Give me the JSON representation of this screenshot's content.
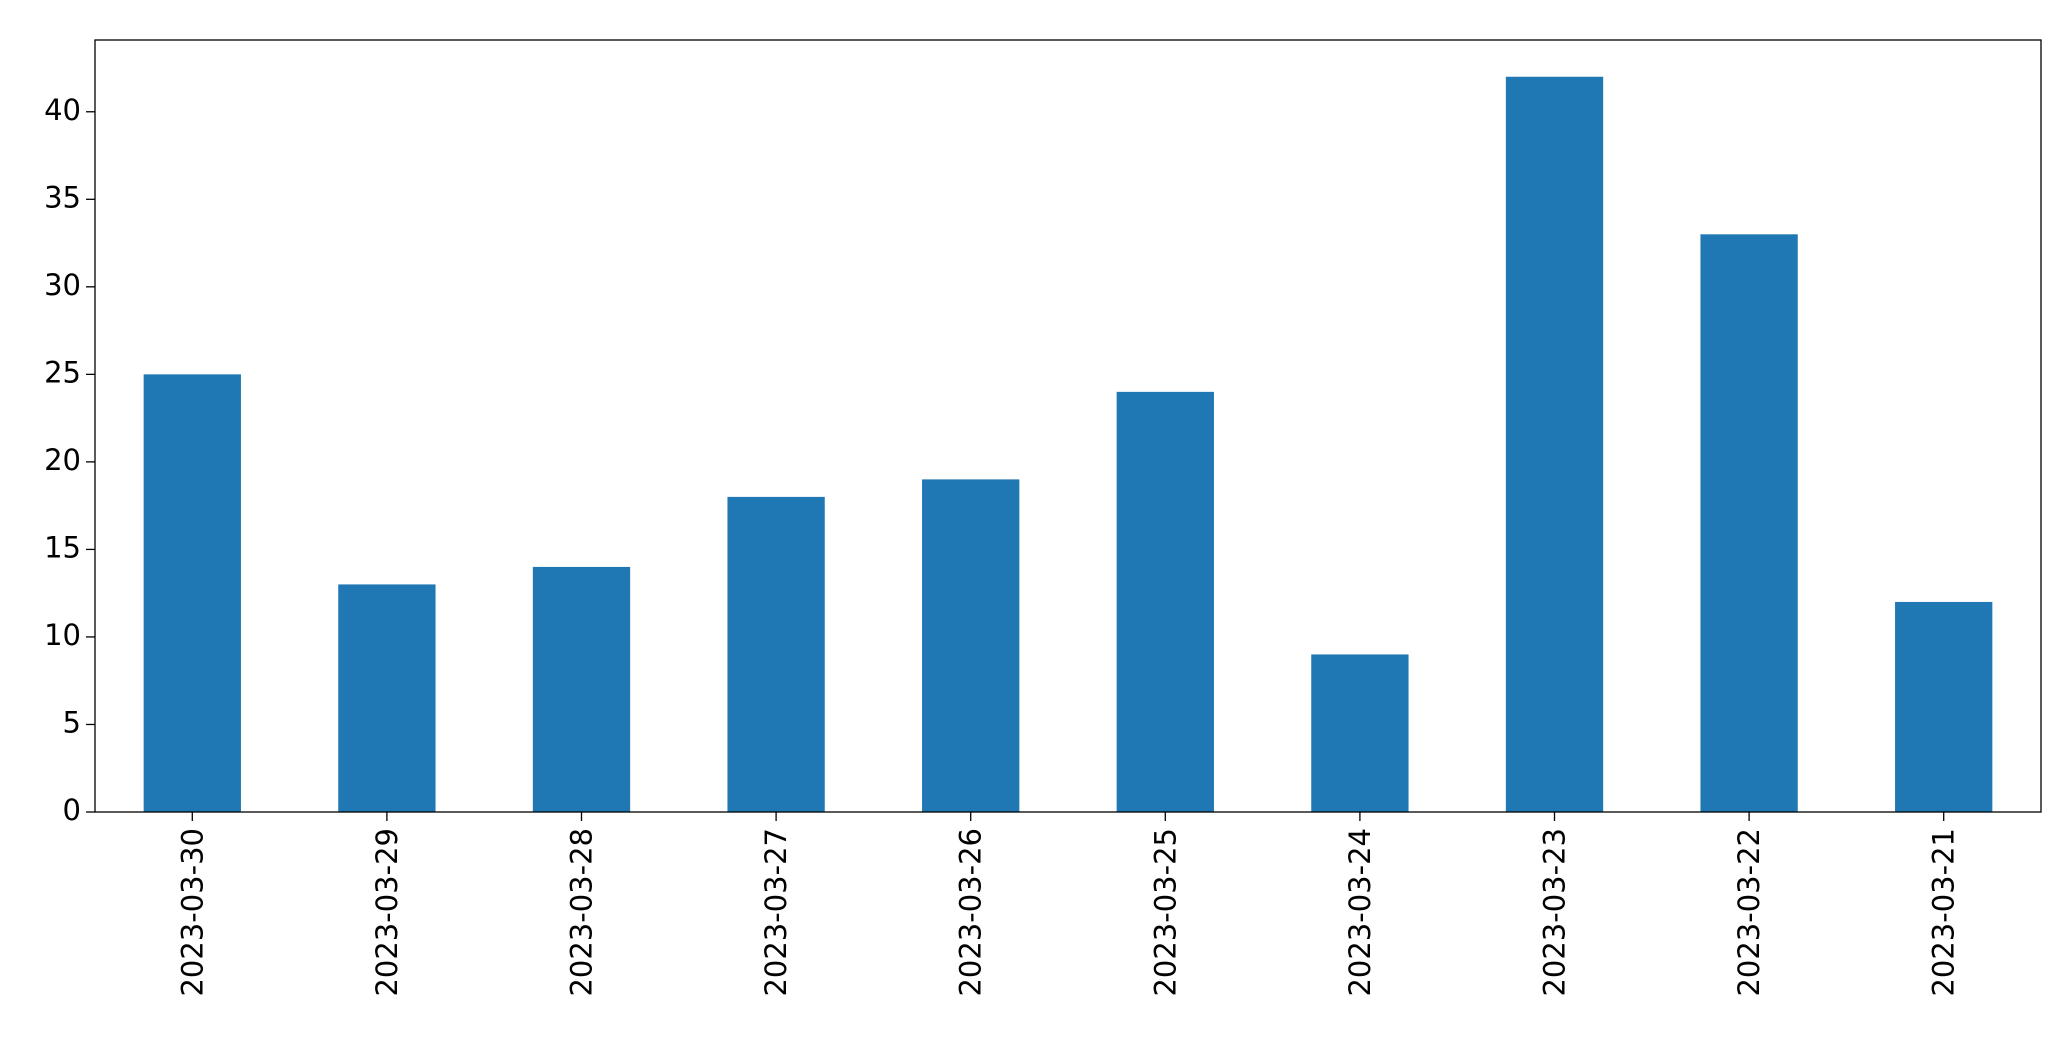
{
  "chart_data": {
    "type": "bar",
    "categories": [
      "2023-03-30",
      "2023-03-29",
      "2023-03-28",
      "2023-03-27",
      "2023-03-26",
      "2023-03-25",
      "2023-03-24",
      "2023-03-23",
      "2023-03-22",
      "2023-03-21"
    ],
    "values": [
      25,
      13,
      14,
      18,
      19,
      24,
      9,
      42,
      33,
      12
    ],
    "color": "#1f77b4",
    "ylim": [
      0,
      44.1
    ],
    "yticks": [
      0,
      5,
      10,
      15,
      20,
      25,
      30,
      35,
      40
    ],
    "grid": false
  }
}
